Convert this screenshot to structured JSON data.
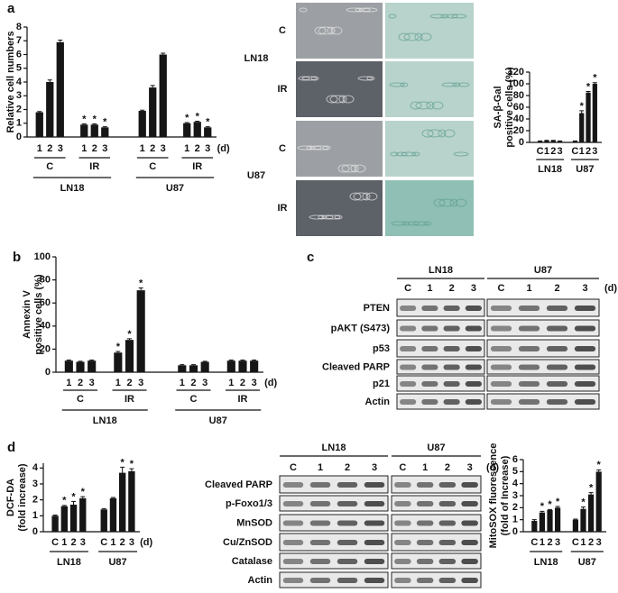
{
  "panel_labels": [
    "a",
    "b",
    "c",
    "d"
  ],
  "chart_data": [
    {
      "type": "bar",
      "ylabel": [
        "Relative cell numbers"
      ],
      "color": "#161616",
      "categories": [
        "1",
        "2",
        "3",
        "1",
        "2",
        "3",
        "1",
        "2",
        "3",
        "1",
        "2",
        "3"
      ],
      "values": [
        1.8,
        4.0,
        6.9,
        0.9,
        0.9,
        0.7,
        1.9,
        3.6,
        6.0,
        1.0,
        1.1,
        0.7
      ],
      "errors": [
        0.05,
        0.15,
        0.15,
        0.05,
        0.05,
        0.05,
        0.05,
        0.15,
        0.1,
        0.05,
        0.05,
        0.05
      ],
      "significance": [
        null,
        null,
        null,
        "*",
        "*",
        "*",
        null,
        null,
        null,
        "*",
        "*",
        "*"
      ],
      "groups": [
        "C",
        "IR",
        "C",
        "IR"
      ],
      "cell_lines": [
        "LN18",
        "U87"
      ],
      "x_unit": "(d)",
      "ylim": [
        0,
        8
      ],
      "yticks": [
        0,
        1,
        2,
        3,
        4,
        5,
        6,
        7,
        8
      ]
    },
    {
      "type": "bar",
      "ylabel": [
        "SA-β-Gal",
        "positive cells (%)"
      ],
      "color": "#161616",
      "categories": [
        "C",
        "1",
        "2",
        "3",
        "C",
        "1",
        "2",
        "3"
      ],
      "values": [
        2,
        3,
        3,
        2,
        2,
        50,
        85,
        100
      ],
      "errors": [
        0.5,
        0.5,
        0.5,
        0.5,
        0.5,
        4,
        2,
        2
      ],
      "significance": [
        null,
        null,
        null,
        null,
        null,
        "*",
        "*",
        "*"
      ],
      "cell_lines": [
        "LN18",
        "U87"
      ],
      "ylim": [
        0,
        120
      ],
      "yticks": [
        0,
        20,
        40,
        60,
        80,
        100,
        120
      ]
    },
    {
      "type": "bar",
      "ylabel": [
        "Annexin V",
        "positive cells (%)"
      ],
      "color": "#161616",
      "categories": [
        "1",
        "2",
        "3",
        "1",
        "2",
        "3",
        "1",
        "2",
        "3",
        "1",
        "2",
        "3"
      ],
      "values": [
        10,
        9,
        10,
        17,
        28,
        71,
        6,
        6,
        9,
        10,
        10,
        10
      ],
      "errors": [
        0.5,
        0.5,
        0.5,
        1,
        1,
        2,
        0.5,
        0.5,
        0.5,
        0.5,
        0.5,
        0.5
      ],
      "significance": [
        null,
        null,
        null,
        "*",
        "*",
        "*",
        null,
        null,
        null,
        null,
        null,
        null
      ],
      "groups": [
        "C",
        "IR",
        "C",
        "IR"
      ],
      "cell_lines": [
        "LN18",
        "U87"
      ],
      "x_unit": "(d)",
      "ylim": [
        0,
        100
      ],
      "yticks": [
        0,
        20,
        40,
        60,
        80,
        100
      ]
    },
    {
      "type": "bar",
      "ylabel": [
        "DCF-DA",
        "(fold increase)"
      ],
      "color": "#161616",
      "categories": [
        "C",
        "1",
        "2",
        "3",
        "C",
        "1",
        "2",
        "3"
      ],
      "values": [
        1.0,
        1.6,
        1.7,
        2.1,
        1.4,
        2.1,
        3.7,
        3.8
      ],
      "errors": [
        0.05,
        0.05,
        0.2,
        0.1,
        0.05,
        0.05,
        0.35,
        0.15
      ],
      "significance": [
        null,
        "*",
        "*",
        "*",
        null,
        null,
        "*",
        "*"
      ],
      "cell_lines": [
        "LN18",
        "U87"
      ],
      "x_unit": "(d)",
      "ylim": [
        0,
        4.3
      ],
      "yticks": [
        0,
        1,
        2,
        3,
        4
      ]
    },
    {
      "type": "bar",
      "ylabel": [
        "MitoSOX fluorescence",
        "(fold of Increase)"
      ],
      "color": "#161616",
      "categories": [
        "C",
        "1",
        "2",
        "3",
        "C",
        "1",
        "2",
        "3"
      ],
      "values": [
        0.9,
        1.6,
        1.8,
        2.0,
        1.0,
        1.9,
        3.1,
        5.0
      ],
      "errors": [
        0.1,
        0.1,
        0.05,
        0.1,
        0.05,
        0.15,
        0.15,
        0.15
      ],
      "significance": [
        null,
        "*",
        "*",
        "*",
        null,
        "*",
        "*",
        "*"
      ],
      "cell_lines": [
        "LN18",
        "U87"
      ],
      "ylim": [
        0,
        6
      ],
      "yticks": [
        0,
        1,
        2,
        3,
        4,
        5,
        6
      ]
    }
  ],
  "micrographs": {
    "cell_lines": [
      "LN18",
      "U87"
    ],
    "conditions": [
      "C",
      "IR",
      "C",
      "IR"
    ]
  },
  "blots": [
    {
      "cell_lines": [
        "LN18",
        "U87"
      ],
      "lanes": [
        "C",
        "1",
        "2",
        "3",
        "C",
        "1",
        "2",
        "3"
      ],
      "x_unit": "(d)",
      "rows": [
        "PTEN",
        "pAKT (S473)",
        "p53",
        "Cleaved PARP",
        "p21",
        "Actin"
      ]
    },
    {
      "cell_lines": [
        "LN18",
        "U87"
      ],
      "lanes": [
        "C",
        "1",
        "2",
        "3",
        "C",
        "1",
        "2",
        "3"
      ],
      "x_unit": "(d)",
      "rows": [
        "Cleaved PARP",
        "p-Foxo1/3",
        "MnSOD",
        "Cu/ZnSOD",
        "Catalase",
        "Actin"
      ]
    }
  ]
}
